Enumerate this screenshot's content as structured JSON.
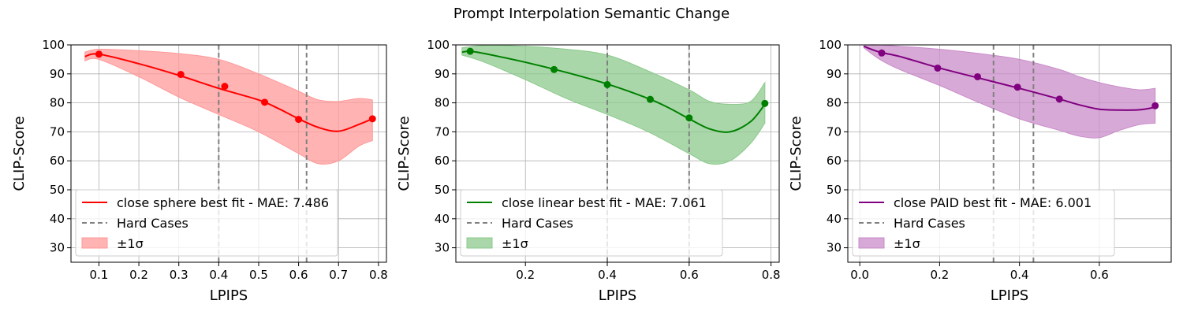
{
  "figure": {
    "suptitle": "Prompt Interpolation Semantic Change"
  },
  "chart_data": [
    {
      "type": "line",
      "xlabel": "LPIPS",
      "ylabel": "CLIP-Score",
      "xlim": [
        0.03,
        0.82
      ],
      "ylim": [
        25,
        100
      ],
      "xticks": [
        0.1,
        0.2,
        0.3,
        0.4,
        0.5,
        0.6,
        0.7,
        0.8
      ],
      "xtick_labels": [
        "0.1",
        "0.2",
        "0.3",
        "0.4",
        "0.5",
        "0.6",
        "0.7",
        "0.8"
      ],
      "yticks": [
        30,
        40,
        50,
        60,
        70,
        80,
        90,
        100
      ],
      "ytick_labels": [
        "30",
        "40",
        "50",
        "60",
        "70",
        "80",
        "90",
        "100"
      ],
      "grid": true,
      "legend_position": "lower-left",
      "color": "#ff0000",
      "band_color": "#ff9999",
      "fit_label": "close sphere best fit - MAE: 7.486",
      "hard_label": "Hard Cases",
      "band_label": "±1σ",
      "fit_x": [
        0.065,
        0.1,
        0.2,
        0.3,
        0.4,
        0.5,
        0.55,
        0.6,
        0.65,
        0.7,
        0.75,
        0.785
      ],
      "fit_y": [
        96,
        96.8,
        93.5,
        89.5,
        85,
        81,
        78,
        74.5,
        71.5,
        70.2,
        72.5,
        74.5
      ],
      "points_x": [
        0.1,
        0.305,
        0.415,
        0.515,
        0.6,
        0.785
      ],
      "points_y": [
        96.8,
        89.8,
        85.7,
        80.2,
        74.3,
        74.5
      ],
      "band_x": [
        0.065,
        0.1,
        0.2,
        0.3,
        0.4,
        0.5,
        0.6,
        0.65,
        0.7,
        0.75,
        0.785
      ],
      "band_upper": [
        97.5,
        98.5,
        98,
        97,
        95,
        90,
        84,
        81,
        80.5,
        81.5,
        81
      ],
      "band_lower": [
        94.5,
        95,
        89,
        82,
        76,
        70,
        62.5,
        59,
        60,
        65,
        67
      ],
      "hard_cases_x": [
        0.4,
        0.62
      ]
    },
    {
      "type": "line",
      "xlabel": "LPIPS",
      "ylabel": "CLIP-Score",
      "xlim": [
        0.03,
        0.82
      ],
      "ylim": [
        25,
        100
      ],
      "xticks": [
        0.2,
        0.4,
        0.6,
        0.8
      ],
      "xtick_labels": [
        "0.2",
        "0.4",
        "0.6",
        "0.8"
      ],
      "yticks": [
        30,
        40,
        50,
        60,
        70,
        80,
        90,
        100
      ],
      "ytick_labels": [
        "30",
        "40",
        "50",
        "60",
        "70",
        "80",
        "90",
        "100"
      ],
      "grid": true,
      "legend_position": "lower-left",
      "color": "#008000",
      "band_color": "#8cc98c",
      "fit_label": "close linear best fit - MAE: 7.061",
      "hard_label": "Hard Cases",
      "band_label": "±1σ",
      "fit_x": [
        0.045,
        0.065,
        0.1,
        0.2,
        0.3,
        0.4,
        0.5,
        0.55,
        0.6,
        0.65,
        0.7,
        0.75,
        0.785
      ],
      "fit_y": [
        97.5,
        97.8,
        97,
        94,
        90.5,
        86.5,
        81.5,
        78.3,
        74.5,
        71,
        70,
        73.5,
        79.5
      ],
      "points_x": [
        0.065,
        0.27,
        0.4,
        0.505,
        0.6,
        0.785
      ],
      "points_y": [
        97.8,
        91.5,
        86.3,
        81.2,
        74.8,
        79.8
      ],
      "band_x": [
        0.045,
        0.1,
        0.2,
        0.3,
        0.4,
        0.5,
        0.6,
        0.65,
        0.7,
        0.75,
        0.785
      ],
      "band_upper": [
        99,
        99.8,
        99.5,
        98.5,
        96.5,
        91,
        84.5,
        80.5,
        79.5,
        80.5,
        87
      ],
      "band_lower": [
        96.5,
        94,
        88,
        81.5,
        76,
        70,
        62.5,
        59,
        60,
        66,
        73
      ],
      "hard_cases_x": [
        0.4,
        0.6
      ]
    },
    {
      "type": "line",
      "xlabel": "LPIPS",
      "ylabel": "CLIP-Score",
      "xlim": [
        -0.03,
        0.78
      ],
      "ylim": [
        25,
        100
      ],
      "xticks": [
        0.0,
        0.2,
        0.4,
        0.6
      ],
      "xtick_labels": [
        "0.0",
        "0.2",
        "0.4",
        "0.6"
      ],
      "yticks": [
        30,
        40,
        50,
        60,
        70,
        80,
        90,
        100
      ],
      "ytick_labels": [
        "30",
        "40",
        "50",
        "60",
        "70",
        "80",
        "90",
        "100"
      ],
      "grid": true,
      "legend_position": "lower-left",
      "color": "#800080",
      "band_color": "#c98cc9",
      "fit_label": "close PAID best fit - MAE: 6.001",
      "hard_label": "Hard Cases",
      "band_label": "±1σ",
      "fit_x": [
        0.01,
        0.05,
        0.1,
        0.2,
        0.3,
        0.4,
        0.5,
        0.55,
        0.6,
        0.65,
        0.7,
        0.74
      ],
      "fit_y": [
        99.5,
        97.5,
        96,
        92,
        88.5,
        85,
        81.3,
        79.3,
        77.8,
        77.5,
        77.6,
        78.5
      ],
      "points_x": [
        0.055,
        0.195,
        0.295,
        0.395,
        0.5,
        0.74
      ],
      "points_y": [
        97.2,
        92,
        89,
        85.4,
        81.3,
        79
      ],
      "band_x": [
        0.01,
        0.05,
        0.1,
        0.2,
        0.3,
        0.4,
        0.5,
        0.55,
        0.6,
        0.65,
        0.7,
        0.74
      ],
      "band_upper": [
        100,
        100,
        99.5,
        98.5,
        97,
        95,
        91.5,
        89,
        87,
        85.5,
        84.5,
        85
      ],
      "band_lower": [
        99,
        95,
        91.5,
        86,
        80,
        74.5,
        70.5,
        68.5,
        68,
        70.5,
        72.5,
        73
      ],
      "hard_cases_x": [
        0.335,
        0.435
      ]
    }
  ]
}
